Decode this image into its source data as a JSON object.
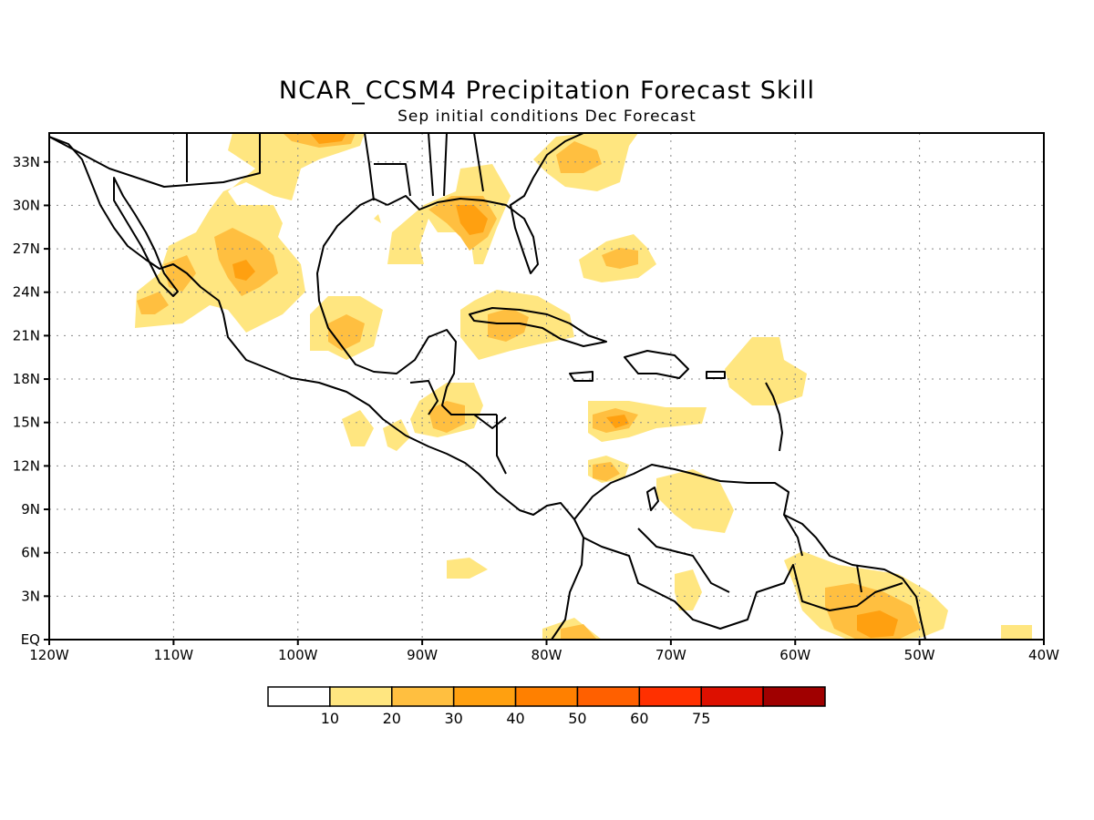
{
  "title": "NCAR_CCSM4 Precipitation Forecast Skill",
  "subtitle": "Sep initial conditions  Dec Forecast",
  "map": {
    "lon_labels": [
      "120W",
      "110W",
      "100W",
      "90W",
      "80W",
      "70W",
      "60W",
      "50W",
      "40W"
    ],
    "lat_labels": [
      "EQ",
      "3N",
      "6N",
      "9N",
      "12N",
      "15N",
      "18N",
      "21N",
      "24N",
      "27N",
      "30N",
      "33N"
    ],
    "lon_range": [
      -120,
      -40
    ],
    "lat_range": [
      0,
      35
    ],
    "grid": true
  },
  "colorbar": {
    "labels": [
      "10",
      "20",
      "30",
      "40",
      "50",
      "60",
      "75"
    ],
    "colors": [
      "#ffffff",
      "#ffe680",
      "#ffbf40",
      "#ffa010",
      "#ff8000",
      "#ff6000",
      "#ff3000",
      "#dd1000",
      "#a00000"
    ]
  },
  "skill_areas": [
    {
      "level": 1,
      "lon": -105.2,
      "lat": 26.0
    },
    {
      "level": 2,
      "lon": -104.5,
      "lat": 25.5
    },
    {
      "level": 1,
      "lon": -111.5,
      "lat": 23.5
    },
    {
      "level": 1,
      "lon": -93.5,
      "lat": 21.5
    },
    {
      "level": 2,
      "lon": -93.0,
      "lat": 21.5
    },
    {
      "level": 1,
      "lon": -86.5,
      "lat": 28.5
    },
    {
      "level": 3,
      "lon": -86.0,
      "lat": 28.5
    },
    {
      "level": 1,
      "lon": -82.5,
      "lat": 22.0
    },
    {
      "level": 2,
      "lon": -84.5,
      "lat": 21.0
    },
    {
      "level": 1,
      "lon": -76.5,
      "lat": 32.5
    },
    {
      "level": 1,
      "lon": -74.0,
      "lat": 26.0
    },
    {
      "level": 1,
      "lon": -74.0,
      "lat": 15.0
    },
    {
      "level": 2,
      "lon": -75.5,
      "lat": 15.0
    },
    {
      "level": 1,
      "lon": -62.0,
      "lat": 19.0
    },
    {
      "level": 1,
      "lon": -87.5,
      "lat": 15.5
    },
    {
      "level": 2,
      "lon": -88.0,
      "lat": 15.5
    },
    {
      "level": 1,
      "lon": -75.5,
      "lat": 11.5
    },
    {
      "level": 1,
      "lon": -68.5,
      "lat": 9.5
    },
    {
      "level": 1,
      "lon": -54.0,
      "lat": 2.0
    },
    {
      "level": 2,
      "lon": -53.5,
      "lat": 1.0
    },
    {
      "level": 3,
      "lon": -53.0,
      "lat": 0.8
    },
    {
      "level": 1,
      "lon": -93.0,
      "lat": 15.0
    },
    {
      "level": 1,
      "lon": -86.0,
      "lat": 5.0
    },
    {
      "level": 1,
      "lon": -70.5,
      "lat": 3.5
    },
    {
      "level": 1,
      "lon": -42.5,
      "lat": 0.5
    },
    {
      "level": 1,
      "lon": -76.0,
      "lat": 0.5
    }
  ]
}
